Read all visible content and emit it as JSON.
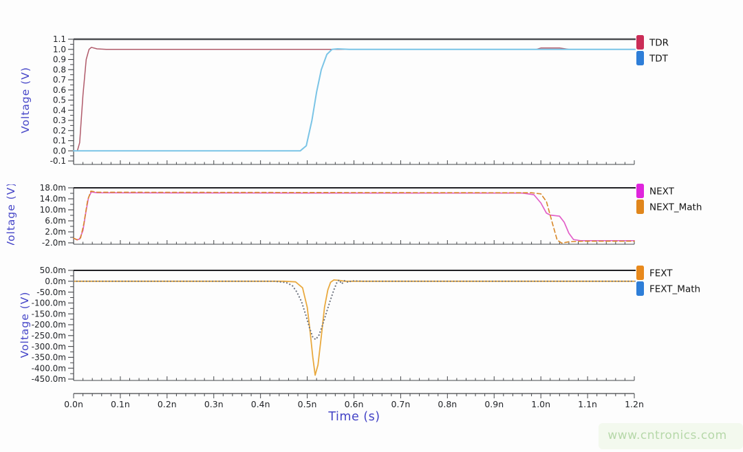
{
  "watermark": {
    "text": "www.cntronics.com",
    "color": "#b6d8a9"
  },
  "xaxis": {
    "label": "Time (s)",
    "lim": [
      0,
      1.2
    ],
    "ticks": [
      {
        "label": "0.0n",
        "value": 0.0
      },
      {
        "label": "0.1n",
        "value": 0.1
      },
      {
        "label": "0.2n",
        "value": 0.2
      },
      {
        "label": "0.3n",
        "value": 0.3
      },
      {
        "label": "0.4n",
        "value": 0.4
      },
      {
        "label": "0.5n",
        "value": 0.5
      },
      {
        "label": "0.6n",
        "value": 0.6
      },
      {
        "label": "0.7n",
        "value": 0.7
      },
      {
        "label": "0.8n",
        "value": 0.8
      },
      {
        "label": "0.9n",
        "value": 0.9
      },
      {
        "label": "1.0n",
        "value": 1.0
      },
      {
        "label": "1.1n",
        "value": 1.1
      },
      {
        "label": "1.2n",
        "value": 1.2
      }
    ]
  },
  "chart_data": [
    {
      "type": "line",
      "title": "",
      "ylabel": "Voltage (V)",
      "ylabel_clipped": false,
      "xlim": [
        0,
        1.2
      ],
      "ylim": [
        -0.1,
        1.1
      ],
      "grid": false,
      "legend_position": "right",
      "yticks": [
        {
          "label": "1.1",
          "value": 1.1
        },
        {
          "label": "1.0",
          "value": 1.0
        },
        {
          "label": "0.9",
          "value": 0.9
        },
        {
          "label": "0.8",
          "value": 0.8
        },
        {
          "label": "0.7",
          "value": 0.7
        },
        {
          "label": "0.6",
          "value": 0.6
        },
        {
          "label": "0.5",
          "value": 0.5
        },
        {
          "label": "0.4",
          "value": 0.4
        },
        {
          "label": "0.3",
          "value": 0.3
        },
        {
          "label": "0.2",
          "value": 0.2
        },
        {
          "label": "0.1",
          "value": 0.1
        },
        {
          "label": "0.0",
          "value": 0.0
        },
        {
          "label": "-0.1",
          "value": -0.1
        }
      ],
      "series": [
        {
          "name": "TDR",
          "swatch_color": "#cb2d57",
          "line_color": "#b05a6a",
          "style": "solid",
          "width": 1.5,
          "points": [
            [
              0,
              0
            ],
            [
              0.008,
              0
            ],
            [
              0.013,
              0.08
            ],
            [
              0.02,
              0.55
            ],
            [
              0.027,
              0.9
            ],
            [
              0.033,
              1.0
            ],
            [
              0.038,
              1.02
            ],
            [
              0.05,
              1.005
            ],
            [
              0.07,
              1.0
            ],
            [
              0.96,
              1.0
            ],
            [
              0.99,
              1.0
            ],
            [
              1.0,
              1.013
            ],
            [
              1.04,
              1.013
            ],
            [
              1.06,
              1.0
            ],
            [
              1.2,
              1.0
            ]
          ]
        },
        {
          "name": "TDT",
          "swatch_color": "#2e7ed8",
          "line_color": "#7ac4e6",
          "style": "solid",
          "width": 2.0,
          "points": [
            [
              0,
              0
            ],
            [
              0.485,
              0
            ],
            [
              0.498,
              0.05
            ],
            [
              0.51,
              0.3
            ],
            [
              0.52,
              0.58
            ],
            [
              0.53,
              0.8
            ],
            [
              0.542,
              0.95
            ],
            [
              0.553,
              1.0
            ],
            [
              0.565,
              1.005
            ],
            [
              0.59,
              1.0
            ],
            [
              1.2,
              1.0
            ]
          ]
        }
      ],
      "legend_lines": [
        {
          "type": "frame-top"
        },
        {
          "type": "value",
          "value": 1.0,
          "color": "#8cc8ea"
        }
      ]
    },
    {
      "type": "line",
      "title": "",
      "ylabel": "Voltage (V)",
      "ylabel_clipped": true,
      "xlim": [
        0,
        1.2
      ],
      "ylim": [
        -2,
        18
      ],
      "grid": false,
      "legend_position": "right",
      "yticks": [
        {
          "label": "18.0m",
          "value": 18
        },
        {
          "label": "14.0m",
          "value": 14
        },
        {
          "label": "10.0m",
          "value": 10
        },
        {
          "label": "6.0m",
          "value": 6
        },
        {
          "label": "2.0m",
          "value": 2
        },
        {
          "label": "-2.0m",
          "value": -2
        }
      ],
      "series": [
        {
          "name": "NEXT",
          "swatch_color": "#df25dc",
          "line_color": "#e25fc8",
          "style": "solid",
          "width": 1.7,
          "points": [
            [
              0,
              -0.3
            ],
            [
              0.007,
              -0.9
            ],
            [
              0.013,
              -0.6
            ],
            [
              0.02,
              2.5
            ],
            [
              0.026,
              9
            ],
            [
              0.032,
              14.5
            ],
            [
              0.038,
              16.5
            ],
            [
              0.05,
              16.2
            ],
            [
              0.5,
              16.1
            ],
            [
              0.96,
              16.1
            ],
            [
              0.985,
              15.5
            ],
            [
              1.0,
              12.5
            ],
            [
              1.012,
              8.8
            ],
            [
              1.02,
              8.1
            ],
            [
              1.04,
              7.7
            ],
            [
              1.05,
              5.5
            ],
            [
              1.06,
              1.5
            ],
            [
              1.07,
              -0.8
            ],
            [
              1.085,
              -1.2
            ],
            [
              1.2,
              -1.2
            ]
          ]
        },
        {
          "name": "NEXT_Math",
          "swatch_color": "#e0861c",
          "line_color": "#d8882a",
          "style": "dashed",
          "width": 1.6,
          "points": [
            [
              0,
              -0.3
            ],
            [
              0.008,
              -0.9
            ],
            [
              0.015,
              -0.2
            ],
            [
              0.022,
              5
            ],
            [
              0.03,
              13.5
            ],
            [
              0.037,
              16.8
            ],
            [
              0.05,
              16.4
            ],
            [
              0.5,
              16.3
            ],
            [
              0.98,
              16.2
            ],
            [
              1.0,
              15.8
            ],
            [
              1.012,
              13
            ],
            [
              1.025,
              5
            ],
            [
              1.035,
              -1
            ],
            [
              1.045,
              -2.1
            ],
            [
              1.06,
              -1.6
            ],
            [
              1.09,
              -1.4
            ],
            [
              1.2,
              -1.4
            ]
          ]
        }
      ],
      "legend_lines": [
        {
          "type": "frame-top"
        }
      ]
    },
    {
      "type": "line",
      "title": "",
      "ylabel": "Voltage (V)",
      "ylabel_clipped": false,
      "xlim": [
        0,
        1.2
      ],
      "ylim": [
        -450,
        50
      ],
      "grid": false,
      "legend_position": "right",
      "yticks": [
        {
          "label": "50.0m",
          "value": 50
        },
        {
          "label": "0.0m",
          "value": 0
        },
        {
          "label": "-50.0m",
          "value": -50
        },
        {
          "label": "-100.0m",
          "value": -100
        },
        {
          "label": "-150.0m",
          "value": -150
        },
        {
          "label": "-200.0m",
          "value": -200
        },
        {
          "label": "-250.0m",
          "value": -250
        },
        {
          "label": "-300.0m",
          "value": -300
        },
        {
          "label": "-350.0m",
          "value": -350
        },
        {
          "label": "-400.0m",
          "value": -400
        },
        {
          "label": "-450.0m",
          "value": -450
        }
      ],
      "series": [
        {
          "name": "FEXT",
          "swatch_color": "#e8891c",
          "line_color": "#e9a93e",
          "style": "solid",
          "width": 1.8,
          "points": [
            [
              0,
              0
            ],
            [
              0.45,
              0
            ],
            [
              0.475,
              -3
            ],
            [
              0.49,
              -30
            ],
            [
              0.5,
              -120
            ],
            [
              0.506,
              -230
            ],
            [
              0.512,
              -350
            ],
            [
              0.517,
              -432
            ],
            [
              0.523,
              -385
            ],
            [
              0.53,
              -255
            ],
            [
              0.537,
              -120
            ],
            [
              0.544,
              -40
            ],
            [
              0.55,
              -5
            ],
            [
              0.557,
              6
            ],
            [
              0.568,
              4
            ],
            [
              0.58,
              0
            ],
            [
              1.2,
              0
            ]
          ]
        },
        {
          "name": "FEXT_Math",
          "swatch_color": "#2e7ed8",
          "line_color": "#6f7580",
          "style": "dotted",
          "width": 2.2,
          "points": [
            [
              0,
              0
            ],
            [
              0.43,
              0
            ],
            [
              0.455,
              -6
            ],
            [
              0.468,
              -20
            ],
            [
              0.478,
              -50
            ],
            [
              0.488,
              -95
            ],
            [
              0.497,
              -155
            ],
            [
              0.505,
              -215
            ],
            [
              0.512,
              -258
            ],
            [
              0.518,
              -268
            ],
            [
              0.525,
              -248
            ],
            [
              0.533,
              -200
            ],
            [
              0.541,
              -145
            ],
            [
              0.549,
              -90
            ],
            [
              0.557,
              -40
            ],
            [
              0.563,
              -8
            ],
            [
              0.568,
              6
            ],
            [
              0.574,
              -12
            ],
            [
              0.58,
              3
            ],
            [
              0.588,
              -5
            ],
            [
              0.595,
              2
            ],
            [
              0.62,
              0
            ],
            [
              1.2,
              0
            ]
          ]
        }
      ],
      "legend_lines": [
        {
          "type": "frame-top"
        },
        {
          "type": "value",
          "value": 0,
          "color": "#9a9aa0"
        }
      ]
    }
  ]
}
